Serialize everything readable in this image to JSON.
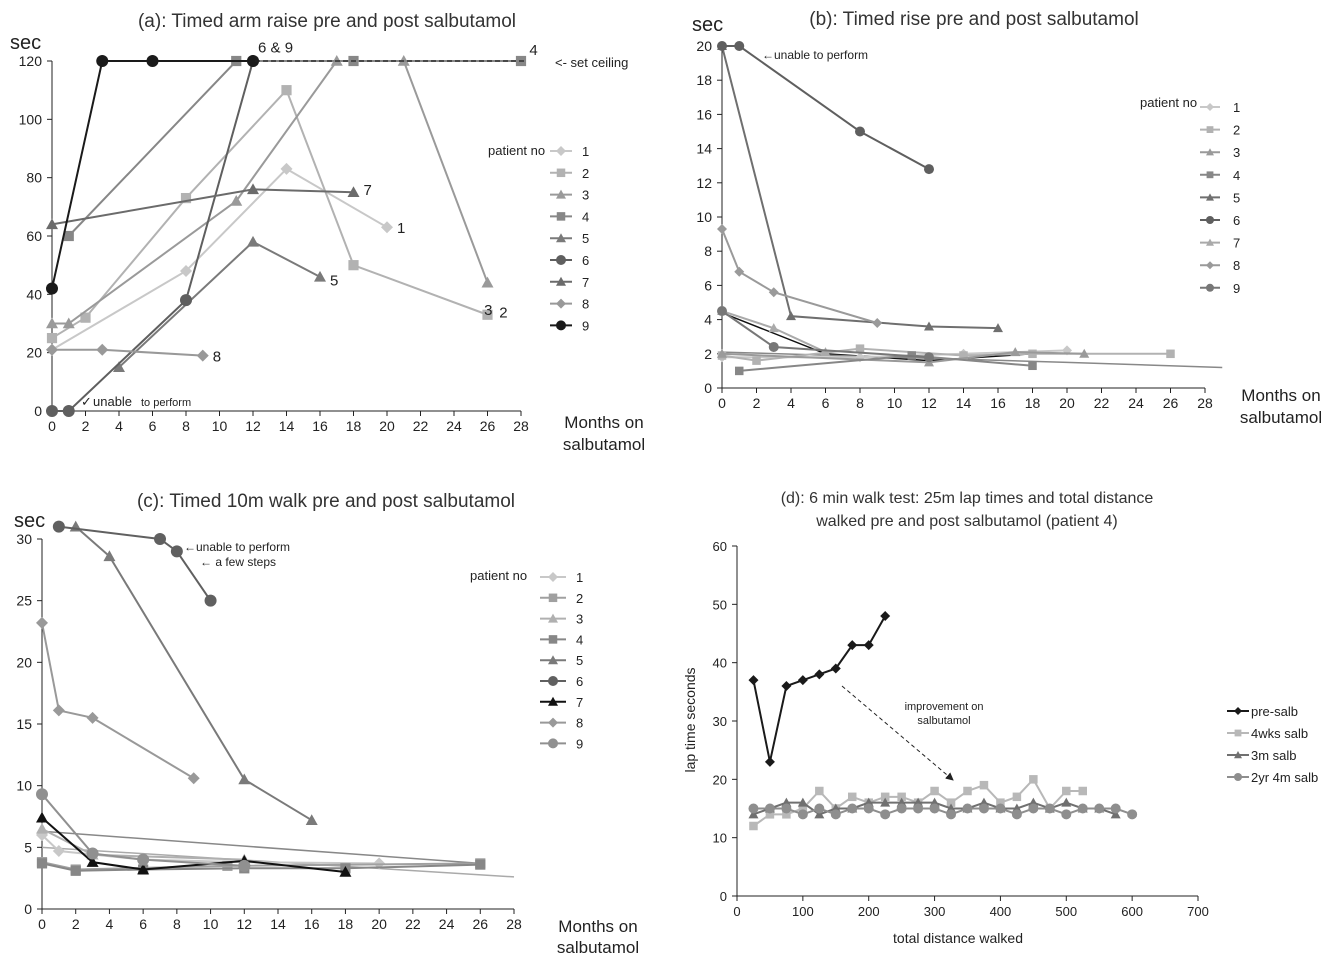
{
  "chart_data": [
    {
      "id": "a",
      "type": "line",
      "title": "(a): Timed arm raise pre and post salbutamol",
      "ylabel": "sec",
      "xlabel": [
        "Months on",
        "salbutamol"
      ],
      "xlim": [
        0,
        28
      ],
      "ylim": [
        0,
        120
      ],
      "xticks": [
        0,
        2,
        4,
        6,
        8,
        10,
        12,
        14,
        16,
        18,
        20,
        22,
        24,
        26,
        28
      ],
      "yticks": [
        0,
        20,
        40,
        60,
        80,
        100,
        120
      ],
      "legend_title": "patient no",
      "series": [
        {
          "name": "1",
          "marker": "diamond",
          "color": "#c8c8c8",
          "x": [
            0,
            8,
            14,
            20
          ],
          "y": [
            21,
            48,
            83,
            63
          ]
        },
        {
          "name": "2",
          "marker": "square",
          "color": "#b2b2b2",
          "x": [
            0,
            2,
            8,
            14,
            18,
            26
          ],
          "y": [
            25,
            32,
            73,
            110,
            50,
            33
          ]
        },
        {
          "name": "3",
          "marker": "triangle",
          "color": "#9a9a9a",
          "x": [
            0,
            1,
            11,
            17,
            21,
            26
          ],
          "y": [
            30,
            30,
            72,
            120,
            120,
            44
          ]
        },
        {
          "name": "4",
          "marker": "square",
          "color": "#878787",
          "x": [
            1,
            11,
            18,
            28
          ],
          "y": [
            60,
            120,
            120,
            120
          ]
        },
        {
          "name": "5",
          "marker": "triangle",
          "color": "#7a7a7a",
          "x": [
            4,
            12,
            16
          ],
          "y": [
            15,
            58,
            46
          ]
        },
        {
          "name": "6",
          "marker": "circle",
          "color": "#5f5f5f",
          "x": [
            0,
            1,
            8,
            12
          ],
          "y": [
            0,
            0,
            38,
            120
          ]
        },
        {
          "name": "7",
          "marker": "triangle",
          "color": "#6b6b6b",
          "x": [
            0,
            12,
            18
          ],
          "y": [
            64,
            76,
            75
          ]
        },
        {
          "name": "8",
          "marker": "diamond",
          "color": "#999999",
          "x": [
            0,
            3,
            9
          ],
          "y": [
            21,
            21,
            19
          ]
        },
        {
          "name": "9",
          "marker": "circle",
          "color": "#1a1a1a",
          "x": [
            0,
            3,
            6,
            12
          ],
          "y": [
            42,
            120,
            120,
            120
          ]
        }
      ],
      "end_labels": [
        {
          "text": "6 & 9",
          "x": 12.3,
          "y": 123
        },
        {
          "text": "4",
          "x": 28.5,
          "y": 122
        },
        {
          "text": "7",
          "x": 18.6,
          "y": 74
        },
        {
          "text": "1",
          "x": 20.6,
          "y": 61
        },
        {
          "text": "5",
          "x": 16.6,
          "y": 43
        },
        {
          "text": "3",
          "x": 25.8,
          "y": 33
        },
        {
          "text": "2",
          "x": 26.7,
          "y": 32
        },
        {
          "text": "8",
          "x": 9.6,
          "y": 17
        }
      ],
      "annotations": {
        "ceiling": "<- set ceiling",
        "unable_big": "unable",
        "unable_small": "to perform"
      }
    },
    {
      "id": "b",
      "type": "line",
      "title": "(b): Timed rise pre and post salbutamol",
      "ylabel": "sec",
      "xlabel": [
        "Months on",
        "salbutamol"
      ],
      "xlim": [
        0,
        28
      ],
      "ylim": [
        0,
        20
      ],
      "xticks": [
        0,
        2,
        4,
        6,
        8,
        10,
        12,
        14,
        16,
        18,
        20,
        22,
        24,
        26,
        28
      ],
      "yticks": [
        0,
        2,
        4,
        6,
        8,
        10,
        12,
        14,
        16,
        18,
        20
      ],
      "legend_title": "patient no",
      "series": [
        {
          "name": "1",
          "marker": "diamond",
          "color": "#c8c8c8",
          "x": [
            0,
            8,
            14,
            20
          ],
          "y": [
            1.8,
            1.8,
            2.0,
            2.2
          ]
        },
        {
          "name": "2",
          "marker": "square",
          "color": "#b2b2b2",
          "x": [
            0,
            2,
            8,
            14,
            18,
            26
          ],
          "y": [
            1.9,
            1.6,
            2.3,
            1.9,
            2.0,
            2.0
          ]
        },
        {
          "name": "3",
          "marker": "triangle",
          "color": "#9a9a9a",
          "x": [
            0,
            12,
            17,
            21
          ],
          "y": [
            2.0,
            1.5,
            2.1,
            2.0
          ]
        },
        {
          "name": "4",
          "marker": "square",
          "color": "#878787",
          "x": [
            1,
            11,
            18
          ],
          "y": [
            1.0,
            1.9,
            1.3
          ]
        },
        {
          "name": "5",
          "marker": "triangle",
          "color": "#6f6f6f",
          "x": [
            0,
            4,
            12,
            16
          ],
          "y": [
            20,
            4.2,
            3.6,
            3.5
          ]
        },
        {
          "name": "6",
          "marker": "circle",
          "color": "#5f5f5f",
          "x": [
            0,
            1,
            8,
            12
          ],
          "y": [
            20,
            20,
            15,
            12.8
          ]
        },
        {
          "name": "7",
          "marker": "triangle",
          "color": "#aaaaaa",
          "x": [
            0,
            3,
            6
          ],
          "y": [
            4.5,
            3.5,
            2.1
          ]
        },
        {
          "name": "8",
          "marker": "diamond",
          "color": "#9a9a9a",
          "x": [
            0,
            1,
            3,
            9
          ],
          "y": [
            9.3,
            6.8,
            5.6,
            3.8
          ]
        },
        {
          "name": "9",
          "marker": "circle",
          "color": "#777777",
          "x": [
            0,
            3,
            12
          ],
          "y": [
            4.5,
            2.4,
            1.8
          ]
        }
      ],
      "extra_lines": [
        {
          "color": "#111111",
          "marker": "none",
          "x": [
            0,
            6,
            12,
            18
          ],
          "y": [
            4.4,
            2.0,
            1.6,
            2.0
          ]
        },
        {
          "color": "#888888",
          "marker": "none",
          "x": [
            0,
            10,
            20,
            29
          ],
          "y": [
            2.1,
            1.8,
            1.5,
            1.2
          ]
        }
      ],
      "annotations": {
        "unable": "←unable to perform"
      }
    },
    {
      "id": "c",
      "type": "line",
      "title": "(c): Timed 10m walk pre and post salbutamol",
      "ylabel": "sec",
      "xlabel": [
        "Months on",
        "salbutamol"
      ],
      "xlim": [
        0,
        28
      ],
      "ylim": [
        0,
        30
      ],
      "xticks": [
        0,
        2,
        4,
        6,
        8,
        10,
        12,
        14,
        16,
        18,
        20,
        22,
        24,
        26,
        28
      ],
      "yticks": [
        0,
        5,
        10,
        15,
        20,
        25,
        30
      ],
      "legend_title": "patient no",
      "series": [
        {
          "name": "1",
          "marker": "diamond",
          "color": "#c8c8c8",
          "x": [
            0,
            1,
            6,
            12,
            20
          ],
          "y": [
            6,
            4.7,
            4.0,
            3.8,
            3.7
          ]
        },
        {
          "name": "2",
          "marker": "square",
          "color": "#a0a0a0",
          "x": [
            0,
            2,
            11,
            26
          ],
          "y": [
            3.8,
            3.2,
            3.5,
            3.7
          ]
        },
        {
          "name": "3",
          "marker": "triangle",
          "color": "#b0b0b0",
          "x": [
            0,
            3,
            12
          ],
          "y": [
            6.5,
            4.4,
            4.0
          ]
        },
        {
          "name": "4",
          "marker": "square",
          "color": "#878787",
          "x": [
            0,
            2,
            6,
            12,
            18,
            26
          ],
          "y": [
            3.7,
            3.1,
            3.2,
            3.3,
            3.3,
            3.6
          ]
        },
        {
          "name": "5",
          "marker": "triangle",
          "color": "#7a7a7a",
          "x": [
            2,
            4,
            12,
            16
          ],
          "y": [
            31,
            28.6,
            10.5,
            7.2
          ]
        },
        {
          "name": "6",
          "marker": "circle",
          "color": "#606060",
          "x": [
            1,
            7,
            8,
            10
          ],
          "y": [
            31,
            30,
            29,
            25
          ]
        },
        {
          "name": "7",
          "marker": "triangle",
          "color": "#111111",
          "x": [
            0,
            3,
            6,
            12,
            18
          ],
          "y": [
            7.4,
            3.8,
            3.2,
            3.9,
            3.0
          ]
        },
        {
          "name": "8",
          "marker": "diamond",
          "color": "#999999",
          "x": [
            0,
            1,
            3,
            9
          ],
          "y": [
            23.2,
            16.1,
            15.5,
            10.6
          ]
        },
        {
          "name": "9",
          "marker": "circle",
          "color": "#909090",
          "x": [
            0,
            3,
            6,
            12
          ],
          "y": [
            9.3,
            4.5,
            4.0,
            3.5
          ]
        }
      ],
      "extra_lines": [
        {
          "color": "#888888",
          "marker": "none",
          "x": [
            0,
            26
          ],
          "y": [
            6.3,
            3.7
          ]
        },
        {
          "color": "#aaaaaa",
          "marker": "none",
          "x": [
            0,
            28
          ],
          "y": [
            5.0,
            2.6
          ]
        }
      ],
      "annotations": {
        "unable": "←unable to perform",
        "few": "← a few steps"
      }
    },
    {
      "id": "d",
      "type": "line",
      "title": [
        "(d): 6 min walk test: 25m lap times and total distance",
        "walked pre and post salbutamol (patient 4)"
      ],
      "ylabel": "lap time seconds",
      "xlabel": "total distance walked",
      "xlim": [
        0,
        700
      ],
      "ylim": [
        0,
        60
      ],
      "xticks": [
        0,
        100,
        200,
        300,
        400,
        500,
        600,
        700
      ],
      "yticks": [
        0,
        10,
        20,
        30,
        40,
        50,
        60
      ],
      "series": [
        {
          "name": "pre-salb",
          "marker": "diamond",
          "color": "#1a1a1a",
          "x": [
            25,
            50,
            75,
            100,
            125,
            150,
            175,
            200,
            225
          ],
          "y": [
            37,
            23,
            36,
            37,
            38,
            39,
            43,
            43,
            48
          ]
        },
        {
          "name": "4wks salb",
          "marker": "square",
          "color": "#b8b8b8",
          "x": [
            25,
            50,
            75,
            100,
            125,
            150,
            175,
            200,
            225,
            250,
            275,
            300,
            325,
            350,
            375,
            400,
            425,
            450,
            475,
            500,
            525
          ],
          "y": [
            12,
            14,
            14,
            15,
            18,
            15,
            17,
            16,
            17,
            17,
            16,
            18,
            16,
            18,
            19,
            16,
            17,
            20,
            15,
            18,
            18
          ]
        },
        {
          "name": "3m salb",
          "marker": "triangle",
          "color": "#707070",
          "x": [
            25,
            50,
            75,
            100,
            125,
            150,
            175,
            200,
            225,
            250,
            275,
            300,
            325,
            350,
            375,
            400,
            425,
            450,
            475,
            500,
            525,
            550,
            575
          ],
          "y": [
            14,
            15,
            16,
            16,
            14,
            15,
            15,
            16,
            16,
            16,
            16,
            16,
            15,
            15,
            16,
            15,
            15,
            16,
            15,
            16,
            15,
            15,
            14
          ]
        },
        {
          "name": "2yr 4m salb",
          "marker": "circle",
          "color": "#8e8e8e",
          "x": [
            25,
            50,
            75,
            100,
            125,
            150,
            175,
            200,
            225,
            250,
            275,
            300,
            325,
            350,
            375,
            400,
            425,
            450,
            475,
            500,
            525,
            550,
            575,
            600
          ],
          "y": [
            15,
            15,
            15,
            14,
            15,
            14,
            15,
            15,
            14,
            15,
            15,
            15,
            14,
            15,
            15,
            15,
            14,
            15,
            15,
            14,
            15,
            15,
            15,
            14
          ]
        }
      ],
      "annotations": {
        "improvement": [
          "improvement on",
          "salbutamol"
        ]
      }
    }
  ]
}
